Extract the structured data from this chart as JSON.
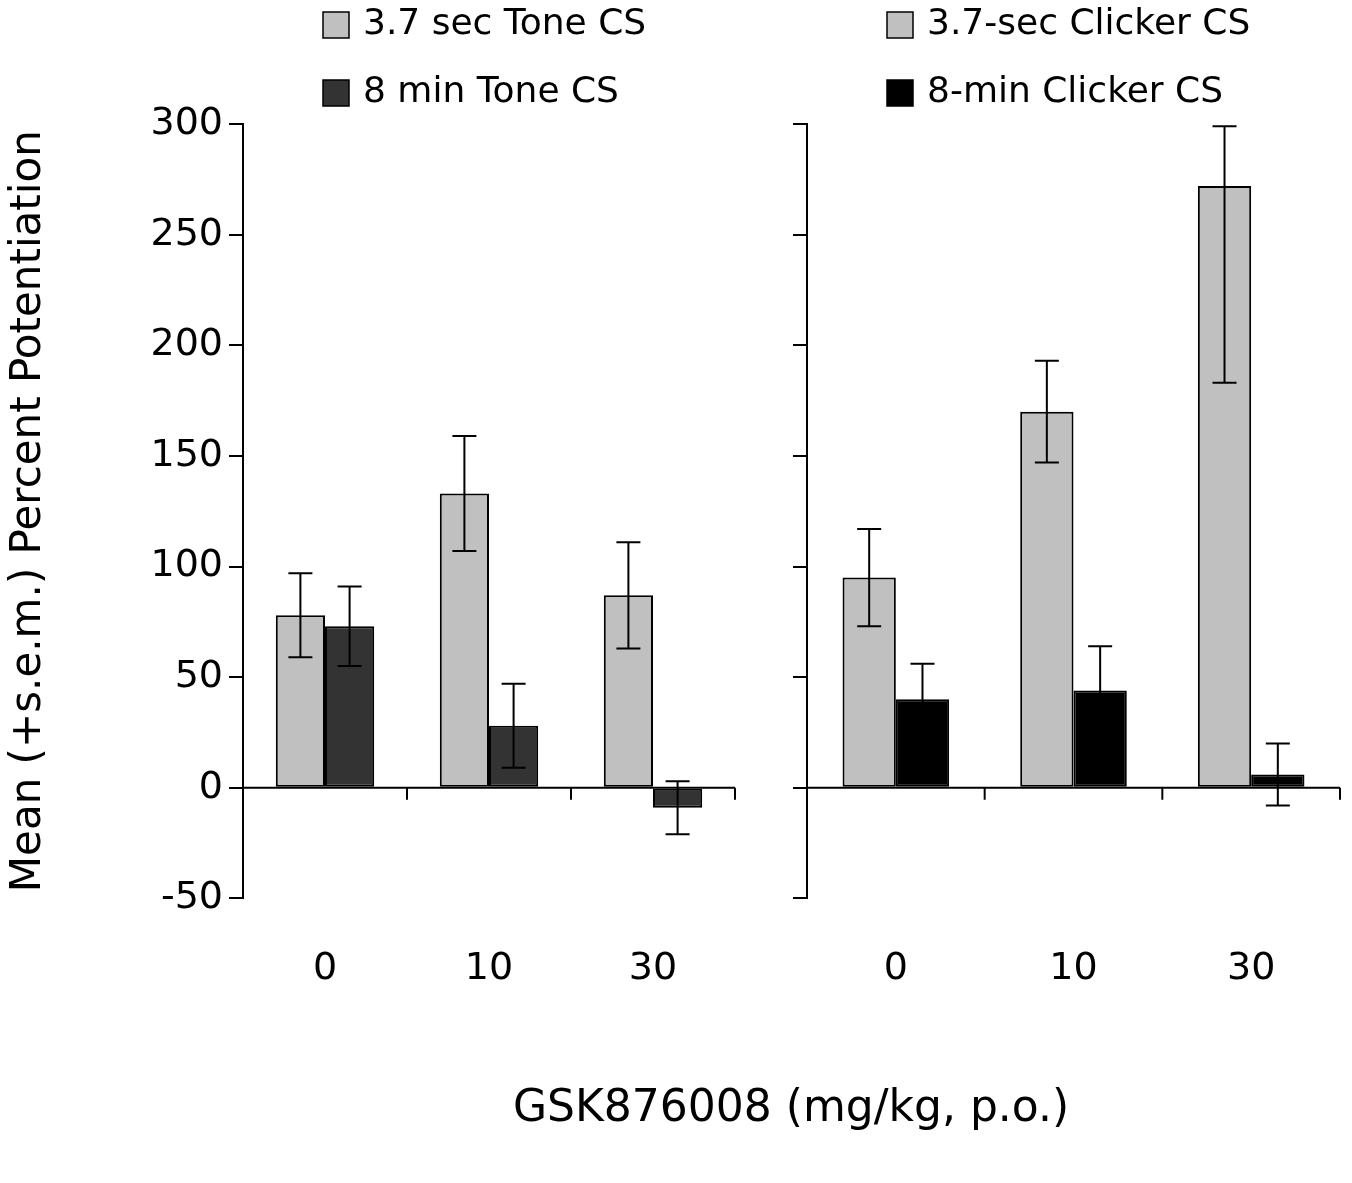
{
  "chart_data": [
    {
      "type": "bar",
      "ylabel": "Mean (+s.e.m.) Percent Potentiation",
      "xlabel": "GSK876008 (mg/kg, p.o.)",
      "categories": [
        "0",
        "10",
        "30"
      ],
      "legend": "top",
      "ylim": [
        -50,
        300
      ],
      "yticks": [
        -50,
        0,
        50,
        100,
        150,
        200,
        250,
        300
      ],
      "series": [
        {
          "name": "3.7 sec Tone CS",
          "color": "#c0c0c0",
          "values": [
            78,
            133,
            87
          ],
          "errors": [
            19,
            26,
            24
          ]
        },
        {
          "name": "8 min Tone CS",
          "color": "#333333",
          "values": [
            73,
            28,
            -9
          ],
          "errors": [
            18,
            19,
            12
          ]
        }
      ]
    },
    {
      "type": "bar",
      "categories": [
        "0",
        "10",
        "30"
      ],
      "legend": "top",
      "tick_labels": "x",
      "ylim": [
        -50,
        300
      ],
      "yticks": [
        {
          "value": -50,
          "label": null
        },
        {
          "value": 0,
          "label": null
        },
        {
          "value": 50,
          "label": null
        },
        {
          "value": 100,
          "label": null
        },
        {
          "value": 150,
          "label": null
        },
        {
          "value": 200,
          "label": null
        },
        {
          "value": 250,
          "label": null
        },
        {
          "value": 300,
          "label": null
        }
      ],
      "series": [
        {
          "name": "3.7-sec Clicker CS",
          "color": "#c0c0c0",
          "values": [
            95,
            170,
            272
          ],
          "errors": [
            22,
            23,
            [
              183,
              299
            ]
          ]
        },
        {
          "name": "8-min Clicker CS",
          "color": "#000000",
          "values": [
            40,
            44,
            6
          ],
          "errors": [
            16,
            20,
            14
          ]
        }
      ]
    }
  ]
}
